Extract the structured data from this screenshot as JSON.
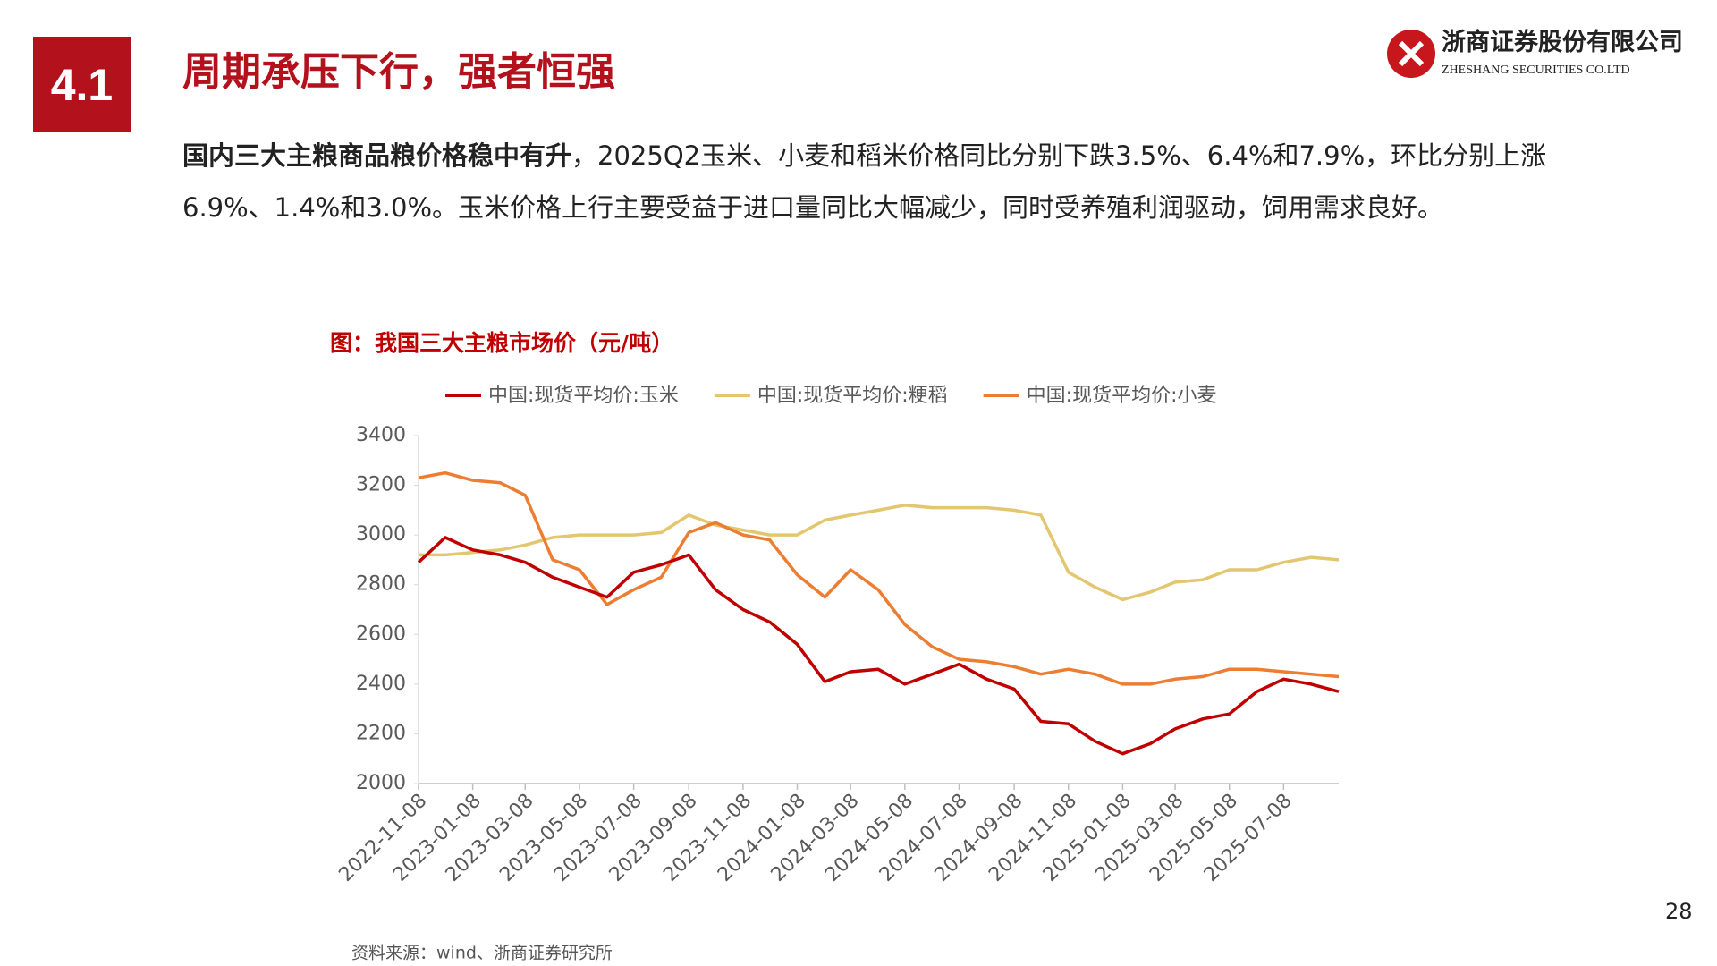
{
  "section_number": "4.1",
  "header_title": "周期承压下行，强者恒强",
  "logo": {
    "name": "浙商证券股份有限公司",
    "english": "ZHESHANG SECURITIES CO.LTD"
  },
  "paragraph": {
    "bold": "国内三大主粮商品粮价格稳中有升",
    "text": "，2025Q2玉米、小麦和稻米价格同比分别下跌3.5%、6.4%和7.9%，环比分别上涨6.9%、1.4%和3.0%。玉米价格上行主要受益于进口量同比大幅减少，同时受养殖利润驱动，饲用需求良好。"
  },
  "page_number": "28",
  "chart_data": {
    "type": "line",
    "title": "图：我国三大主粮市场价（元/吨）",
    "source": "资料来源：wind、浙商证券研究所",
    "x": [
      "2022-11-08",
      "2022-12-08",
      "2023-01-08",
      "2023-02-08",
      "2023-03-08",
      "2023-04-08",
      "2023-05-08",
      "2023-06-08",
      "2023-07-08",
      "2023-08-08",
      "2023-09-08",
      "2023-10-08",
      "2023-11-08",
      "2023-12-08",
      "2024-01-08",
      "2024-02-08",
      "2024-03-08",
      "2024-04-08",
      "2024-05-08",
      "2024-06-08",
      "2024-07-08",
      "2024-08-08",
      "2024-09-08",
      "2024-10-08",
      "2024-11-08",
      "2024-12-08",
      "2025-01-08",
      "2025-02-08",
      "2025-03-08",
      "2025-04-08",
      "2025-05-08",
      "2025-06-08",
      "2025-07-08",
      "2025-08-08",
      "2025-09-08"
    ],
    "series": [
      {
        "name": "中国:现货平均价:玉米",
        "color": "#c00000",
        "values": [
          2890,
          2990,
          2940,
          2920,
          2890,
          2830,
          2790,
          2750,
          2850,
          2880,
          2920,
          2780,
          2700,
          2650,
          2560,
          2410,
          2450,
          2460,
          2400,
          2440,
          2480,
          2420,
          2380,
          2250,
          2240,
          2170,
          2120,
          2160,
          2220,
          2260,
          2280,
          2370,
          2420,
          2400,
          2370
        ]
      },
      {
        "name": "中国:现货平均价:粳稻",
        "color": "#e3c670",
        "values": [
          2920,
          2920,
          2930,
          2940,
          2960,
          2990,
          3000,
          3000,
          3000,
          3010,
          3080,
          3040,
          3020,
          3000,
          3000,
          3060,
          3080,
          3100,
          3120,
          3110,
          3110,
          3110,
          3100,
          3080,
          2850,
          2790,
          2740,
          2770,
          2810,
          2820,
          2860,
          2860,
          2890,
          2910,
          2900
        ]
      },
      {
        "name": "中国:现货平均价:小麦",
        "color": "#ed7d31",
        "values": [
          3230,
          3250,
          3220,
          3210,
          3160,
          2900,
          2860,
          2720,
          2780,
          2830,
          3010,
          3050,
          3000,
          2980,
          2840,
          2750,
          2860,
          2780,
          2640,
          2550,
          2500,
          2490,
          2470,
          2440,
          2460,
          2440,
          2400,
          2400,
          2420,
          2430,
          2460,
          2460,
          2450,
          2440,
          2430
        ]
      }
    ],
    "xlim": [
      "2022-11-08",
      "2025-09-08"
    ],
    "xticks": [
      "2022-11-08",
      "2023-01-08",
      "2023-03-08",
      "2023-05-08",
      "2023-07-08",
      "2023-09-08",
      "2023-11-08",
      "2024-01-08",
      "2024-03-08",
      "2024-05-08",
      "2024-07-08",
      "2024-09-08",
      "2024-11-08",
      "2025-01-08",
      "2025-03-08",
      "2025-05-08",
      "2025-07-08"
    ],
    "ylim": [
      2000,
      3400
    ],
    "yticks": [
      2000,
      2200,
      2400,
      2600,
      2800,
      3000,
      3200,
      3400
    ],
    "grid": false
  }
}
